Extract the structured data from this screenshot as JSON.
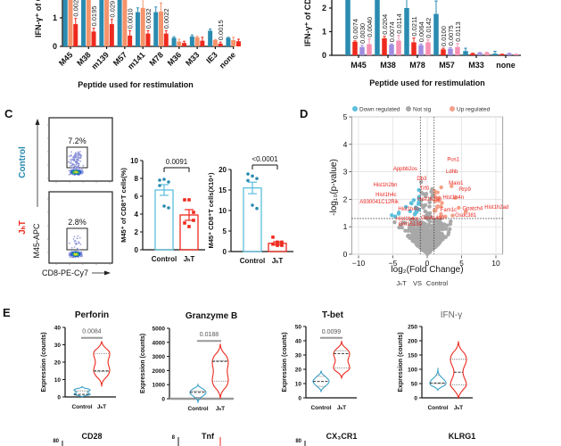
{
  "colors": {
    "teal": "#2a8bb0",
    "orange": "#f5936b",
    "red": "#ee2a1e",
    "purple": "#a08de0",
    "pink": "#f78fb0",
    "lightblue": "#5bbfdc",
    "salmon": "#f4a088",
    "grey": "#a8a8a8",
    "ctrlViolin": "#3aa0c8",
    "label_red": "#e8231e"
  },
  "chart_data": [
    {
      "panel": "A",
      "type": "bar",
      "ylabel": "IFN-γ⁺ of C",
      "xlabel": "Peptide used for restimulation",
      "yticks": [
        0,
        1
      ],
      "categories": [
        "M45",
        "M38",
        "m139",
        "M57",
        "m141",
        "M78",
        "M36",
        "M33",
        "IE3",
        "none"
      ],
      "series": [
        {
          "color": "teal",
          "values": [
            2.5,
            2.5,
            2.5,
            2.5,
            1.2,
            1.2,
            0.3,
            0.35,
            0.55,
            0.3
          ],
          "err": [
            0.3,
            0.3,
            0.3,
            0.3,
            0.15,
            0.18,
            0.04,
            0.05,
            0.06,
            0.02
          ]
        },
        {
          "color": "orange",
          "values": [
            2.5,
            2.5,
            2.5,
            2.5,
            1.35,
            1.22,
            0.17,
            0.32,
            0.22,
            0.22
          ],
          "err": [
            0.3,
            0.3,
            0.3,
            0.3,
            0.3,
            0.3,
            0.08,
            0.03,
            0.02,
            0.1
          ]
        },
        {
          "color": "red",
          "values": [
            0.78,
            0.52,
            0.78,
            0.38,
            0.45,
            0.45,
            0.12,
            0.2,
            0.1,
            0.18
          ],
          "err": [
            0.2,
            0.12,
            0.17,
            0.17,
            0.1,
            0.1,
            0.06,
            0.12,
            0.05,
            0.07
          ]
        }
      ],
      "pvalues": [
        "0.002",
        "0.0195",
        "0.029",
        "0.0010",
        "0.0032",
        "0.0022",
        "",
        "",
        "0.0015",
        ""
      ]
    },
    {
      "panel": "B",
      "type": "bar",
      "ylabel": "IFN-γ⁺ of CD",
      "xlabel": "Peptide used for restimulation",
      "yticks": [
        0,
        1,
        2
      ],
      "categories": [
        "M45",
        "M38",
        "M78",
        "M57",
        "M33",
        "none"
      ],
      "series": [
        {
          "color": "teal",
          "values": [
            2.6,
            2.6,
            2.0,
            1.75,
            0.18,
            0.07
          ],
          "err": [
            0.3,
            0.3,
            0.5,
            0.55,
            0.12,
            0.1
          ]
        },
        {
          "color": "red",
          "values": [
            0.57,
            0.72,
            0.55,
            0.25,
            0.07,
            0.04
          ],
          "err": [
            0.04,
            0.08,
            0.18,
            0.05,
            0.02,
            0.01
          ]
        },
        {
          "color": "purple",
          "values": [
            0.35,
            0.45,
            0.43,
            0.28,
            0.1,
            0.07
          ],
          "err": [
            0.07,
            0.03,
            0.05,
            0.05,
            0.02,
            0.02
          ]
        },
        {
          "color": "pink",
          "values": [
            0.47,
            0.62,
            0.55,
            0.35,
            0.1,
            0.04
          ],
          "err": [
            0.22,
            0.22,
            0.1,
            0.15,
            0.03,
            0.01
          ]
        }
      ],
      "pvalues": [
        [
          "0.0074",
          "0.0030",
          "0.0040"
        ],
        [
          "0.0204",
          "0.0074",
          "0.0114"
        ],
        [
          "0.0211",
          "0.0064",
          "0.0142"
        ],
        [
          "0.0100",
          "0.0075",
          "0.0113"
        ],
        [],
        []
      ]
    },
    {
      "panel": "C-1",
      "type": "bar",
      "ylabel": "M45⁺ of CD8⁺T cells(%)",
      "ylim": [
        0,
        10
      ],
      "yticks": [
        0,
        2,
        4,
        6,
        8,
        10
      ],
      "categories": [
        "Control",
        "JHT"
      ],
      "values": [
        6.7,
        3.9
      ],
      "sem": [
        0.6,
        0.6
      ],
      "points": [
        [
          7.8,
          7.9,
          7.6,
          7.2,
          4.9,
          4.7
        ],
        [
          5.6,
          5.6,
          4.2,
          3.0,
          2.6,
          3.3
        ]
      ],
      "pvalue": "0.0091"
    },
    {
      "panel": "C-2",
      "type": "bar",
      "ylabel": "M45⁺ CD8⁺T cells(X10⁴)",
      "ylim": [
        0,
        20
      ],
      "yticks": [
        0,
        5,
        10,
        15,
        20
      ],
      "categories": [
        "Control",
        "JHT"
      ],
      "values": [
        15.5,
        2.0
      ],
      "sem": [
        1.4,
        0.4
      ],
      "points": [
        [
          18.9,
          18.4,
          17.8,
          17.3,
          11.3,
          10.5
        ],
        [
          3.5,
          2.3,
          2.3,
          1.8,
          1.5,
          1.5
        ]
      ],
      "pvalue": "<0.0001"
    },
    {
      "panel": "D",
      "type": "scatter",
      "xlabel": "log₂(Fold Change)",
      "ylabel": "-log₁₀(p-value)",
      "subtitle": [
        "JHT",
        "VS",
        "Control"
      ],
      "xlim": [
        -11,
        11
      ],
      "ylim": [
        0,
        5
      ],
      "xticks": [
        -10,
        -5,
        0,
        5,
        10
      ],
      "yticks": [
        0,
        1,
        2,
        3,
        4,
        5
      ],
      "thresholds": {
        "log2fc": [
          -1,
          1
        ],
        "neglog10p": 1.3
      },
      "grid": true,
      "legend_position": "top",
      "legend": [
        {
          "label": "Down regulated",
          "color": "lightblue"
        },
        {
          "label": "Not sig",
          "color": "grey"
        },
        {
          "label": "Up regulated",
          "color": "salmon"
        }
      ],
      "gene_labels": [
        {
          "text": "Pus1",
          "x": 3.8,
          "y": 3.4
        },
        {
          "text": "Ldhb",
          "x": 3.6,
          "y": 2.95
        },
        {
          "text": "Maio1",
          "x": 4.2,
          "y": 2.76
        },
        {
          "text": "Rrp9",
          "x": 5.5,
          "y": 2.54
        },
        {
          "text": "Hist1h4n",
          "x": 3.8,
          "y": 2.02
        },
        {
          "text": "Gpatch4",
          "x": 6.6,
          "y": 1.83
        },
        {
          "text": "Hist1h2ad",
          "x": 10.1,
          "y": 1.66
        },
        {
          "text": "Fam1c",
          "x": 3.1,
          "y": 1.56
        },
        {
          "text": "Gsdc381",
          "x": 5.6,
          "y": 1.36
        },
        {
          "text": "Gm41410",
          "x": 0.8,
          "y": 1.27
        },
        {
          "text": "Hist1h2an",
          "x": 0.35,
          "y": 1.72
        },
        {
          "text": "Trf0",
          "x": -0.4,
          "y": 2.11
        },
        {
          "text": "Db3",
          "x": -0.8,
          "y": 2.47
        },
        {
          "text": "Appbb2os",
          "x": -3.2,
          "y": 2.82
        },
        {
          "text": "Hist1h2bn",
          "x": -6.1,
          "y": 2.47
        },
        {
          "text": "Hist1h4b",
          "x": -2.7,
          "y": 2.27
        },
        {
          "text": "Hist1h4c",
          "x": -6.0,
          "y": 2.11
        },
        {
          "text": "Hist1h4m",
          "x": -2.9,
          "y": 1.92
        },
        {
          "text": "A930041C12Rik",
          "x": -7.0,
          "y": 1.63
        },
        {
          "text": "Gm15130",
          "x": -2.5,
          "y": 1.49
        }
      ]
    },
    {
      "panel": "E",
      "type": "violin",
      "ylabel": "Expression (counts)",
      "categories": [
        "Control",
        "JHT"
      ],
      "plots": [
        {
          "title": "Perforin",
          "ymax": 40,
          "yticks": [
            0,
            10,
            20,
            30,
            40
          ],
          "pvalue": "0.0084",
          "pbar": 34,
          "violins": [
            {
              "min": 0,
              "max": 6,
              "q1": 0.3,
              "median": 1.5,
              "q3": 3.5,
              "modes": [
                1.5,
                4
              ]
            },
            {
              "min": 6,
              "max": 32,
              "q1": 14.5,
              "median": 15,
              "q3": 25,
              "modes": [
                15,
                25
              ]
            }
          ]
        },
        {
          "title": "Granzyme B",
          "ymax": 5000,
          "yticks": [
            0,
            1000,
            2000,
            3000,
            4000,
            5000
          ],
          "pvalue": "0.0188",
          "pbar": 4100,
          "violins": [
            {
              "min": -300,
              "max": 1000,
              "q1": 100,
              "median": 450,
              "q3": 550,
              "modes": [
                450
              ]
            },
            {
              "min": 0,
              "max": 3900,
              "q1": 1250,
              "median": 2650,
              "q3": 2700,
              "modes": [
                1250,
                2650
              ]
            }
          ]
        },
        {
          "title": "T-bet",
          "ymax": 50,
          "yticks": [
            0,
            10,
            20,
            30,
            40,
            50
          ],
          "pvalue": "0.0099",
          "pbar": 42,
          "violins": [
            {
              "min": 4,
              "max": 19,
              "q1": 8,
              "median": 11.5,
              "q3": 15,
              "modes": [
                11.5
              ]
            },
            {
              "min": 14,
              "max": 40,
              "q1": 21,
              "median": 31,
              "q3": 33,
              "modes": [
                21,
                31
              ]
            }
          ]
        },
        {
          "title": "IFN-γ",
          "ymax": 250,
          "yticks": [
            0,
            50,
            100,
            150,
            200,
            250
          ],
          "pvalue": "",
          "pbar": null,
          "violins": [
            {
              "min": 27,
              "max": 105,
              "q1": 50,
              "median": 52,
              "q3": 80,
              "modes": [
                52
              ]
            },
            {
              "min": 0,
              "max": 198,
              "q1": 45,
              "median": 90,
              "q3": 135,
              "modes": [
                45,
                135
              ]
            }
          ]
        }
      ],
      "bottom_row_titles": [
        "CD28",
        "Tnf",
        "CX₃CR1",
        "KLRG1"
      ],
      "bottom_row_ticks": [
        "80",
        "8",
        "80"
      ]
    }
  ],
  "panel_c": {
    "flow": {
      "control_label": "Control",
      "jht_label": "JHT",
      "control_pct": "7.2%",
      "jht_pct": "2.8%",
      "y_axis": "M45-APC",
      "x_axis": "CD8-PE-Cy7"
    }
  },
  "panel_letters": [
    "C",
    "D",
    "E"
  ]
}
